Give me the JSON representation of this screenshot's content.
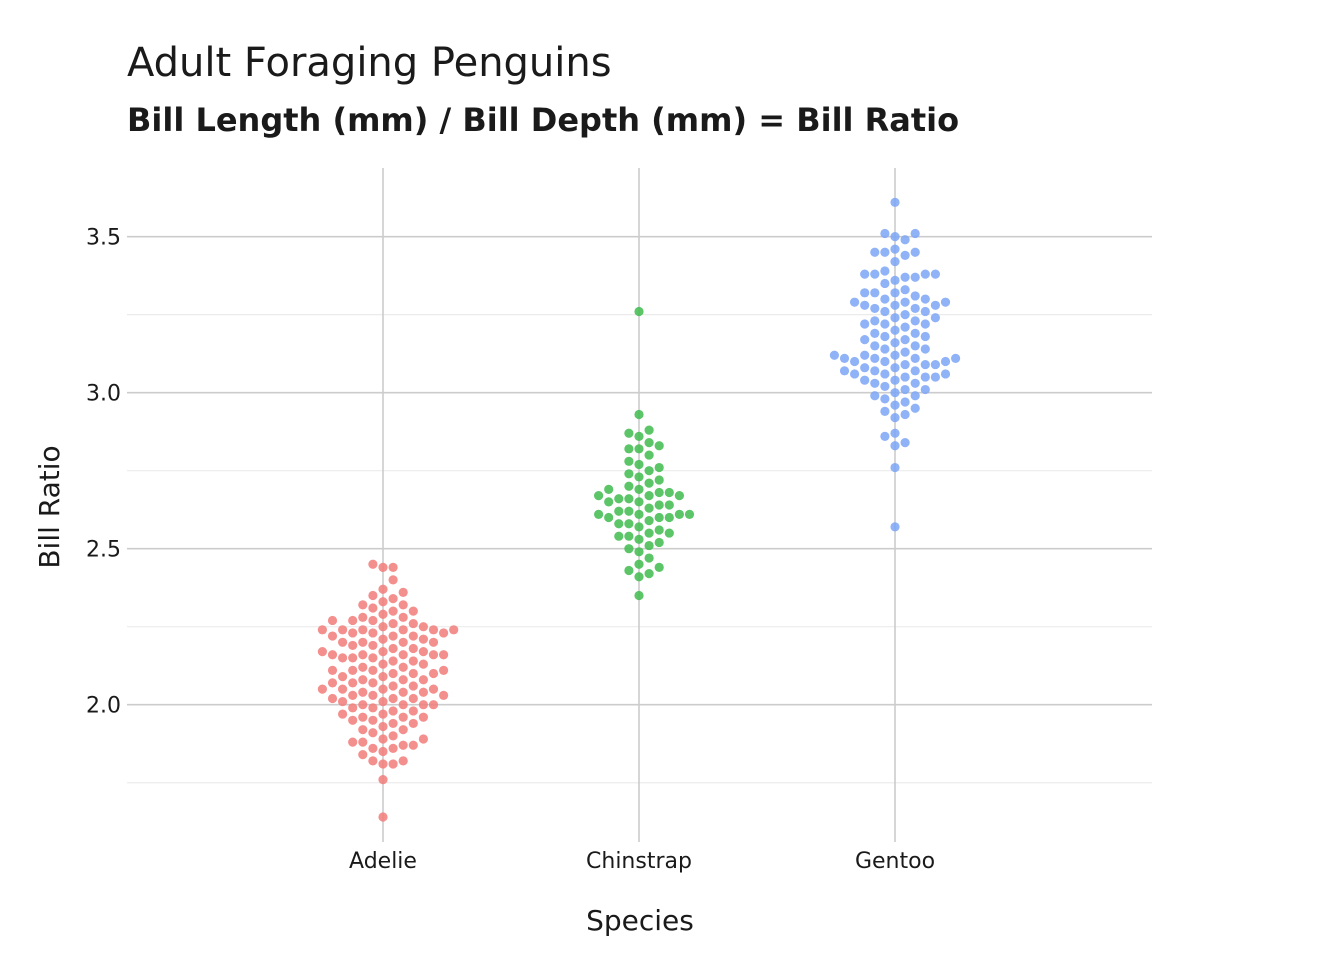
{
  "chart_data": {
    "type": "scatter",
    "subtype": "beeswarm",
    "title": "Adult Foraging Penguins",
    "subtitle": "Bill Length (mm) / Bill Depth (mm) = Bill Ratio",
    "xlabel": "Species",
    "ylabel": "Bill Ratio",
    "categories": [
      "Adelie",
      "Chinstrap",
      "Gentoo"
    ],
    "ylim": [
      1.56,
      3.72
    ],
    "yticks": [
      2.0,
      2.5,
      3.0,
      3.5
    ],
    "ytick_labels": [
      "2.0",
      "2.5",
      "3.0",
      "3.5"
    ],
    "grid": true,
    "legend": "none",
    "series": [
      {
        "category": "Adelie",
        "color": "#F17C7A",
        "values": [
          2.45,
          2.44,
          2.44,
          2.4,
          2.37,
          2.36,
          2.35,
          2.34,
          2.33,
          2.32,
          2.32,
          2.31,
          2.3,
          2.3,
          2.29,
          2.28,
          2.28,
          2.27,
          2.27,
          2.27,
          2.26,
          2.26,
          2.25,
          2.25,
          2.24,
          2.24,
          2.24,
          2.24,
          2.24,
          2.24,
          2.23,
          2.23,
          2.23,
          2.22,
          2.22,
          2.22,
          2.21,
          2.21,
          2.2,
          2.2,
          2.2,
          2.2,
          2.19,
          2.19,
          2.18,
          2.18,
          2.17,
          2.17,
          2.17,
          2.16,
          2.16,
          2.16,
          2.16,
          2.16,
          2.15,
          2.15,
          2.15,
          2.14,
          2.14,
          2.13,
          2.13,
          2.12,
          2.12,
          2.11,
          2.11,
          2.11,
          2.11,
          2.1,
          2.1,
          2.1,
          2.09,
          2.09,
          2.08,
          2.08,
          2.08,
          2.07,
          2.07,
          2.07,
          2.06,
          2.06,
          2.05,
          2.05,
          2.05,
          2.05,
          2.04,
          2.04,
          2.04,
          2.03,
          2.03,
          2.03,
          2.02,
          2.02,
          2.02,
          2.01,
          2.01,
          2.0,
          2.0,
          2.0,
          2.0,
          1.99,
          1.99,
          1.98,
          1.98,
          1.97,
          1.97,
          1.96,
          1.96,
          1.96,
          1.95,
          1.95,
          1.94,
          1.94,
          1.93,
          1.92,
          1.92,
          1.91,
          1.9,
          1.89,
          1.89,
          1.88,
          1.88,
          1.87,
          1.87,
          1.86,
          1.86,
          1.85,
          1.84,
          1.82,
          1.82,
          1.81,
          1.81,
          1.76,
          1.64
        ]
      },
      {
        "category": "Chinstrap",
        "color": "#3EBB4E",
        "values": [
          3.26,
          2.93,
          2.88,
          2.87,
          2.86,
          2.84,
          2.83,
          2.82,
          2.82,
          2.8,
          2.78,
          2.77,
          2.76,
          2.75,
          2.74,
          2.73,
          2.72,
          2.71,
          2.7,
          2.69,
          2.69,
          2.68,
          2.68,
          2.67,
          2.67,
          2.67,
          2.66,
          2.66,
          2.65,
          2.65,
          2.64,
          2.64,
          2.63,
          2.62,
          2.62,
          2.61,
          2.61,
          2.61,
          2.61,
          2.6,
          2.6,
          2.6,
          2.59,
          2.58,
          2.58,
          2.57,
          2.56,
          2.55,
          2.55,
          2.54,
          2.54,
          2.53,
          2.52,
          2.51,
          2.5,
          2.49,
          2.47,
          2.45,
          2.44,
          2.43,
          2.42,
          2.41,
          2.35
        ]
      },
      {
        "category": "Gentoo",
        "color": "#7CA4F4",
        "values": [
          3.61,
          3.51,
          3.51,
          3.5,
          3.49,
          3.46,
          3.45,
          3.45,
          3.45,
          3.44,
          3.42,
          3.39,
          3.38,
          3.38,
          3.38,
          3.38,
          3.37,
          3.37,
          3.36,
          3.35,
          3.33,
          3.32,
          3.32,
          3.32,
          3.31,
          3.3,
          3.3,
          3.29,
          3.29,
          3.29,
          3.28,
          3.28,
          3.28,
          3.27,
          3.27,
          3.26,
          3.26,
          3.25,
          3.24,
          3.24,
          3.23,
          3.23,
          3.22,
          3.22,
          3.22,
          3.21,
          3.2,
          3.19,
          3.19,
          3.18,
          3.18,
          3.17,
          3.17,
          3.16,
          3.15,
          3.15,
          3.14,
          3.14,
          3.13,
          3.12,
          3.12,
          3.12,
          3.11,
          3.11,
          3.11,
          3.11,
          3.1,
          3.1,
          3.1,
          3.09,
          3.09,
          3.09,
          3.08,
          3.08,
          3.07,
          3.07,
          3.07,
          3.06,
          3.06,
          3.06,
          3.05,
          3.05,
          3.05,
          3.04,
          3.04,
          3.03,
          3.03,
          3.02,
          3.01,
          3.01,
          3.0,
          2.99,
          2.99,
          2.98,
          2.97,
          2.96,
          2.95,
          2.94,
          2.93,
          2.92,
          2.87,
          2.86,
          2.84,
          2.83,
          2.76,
          2.57
        ]
      }
    ]
  }
}
